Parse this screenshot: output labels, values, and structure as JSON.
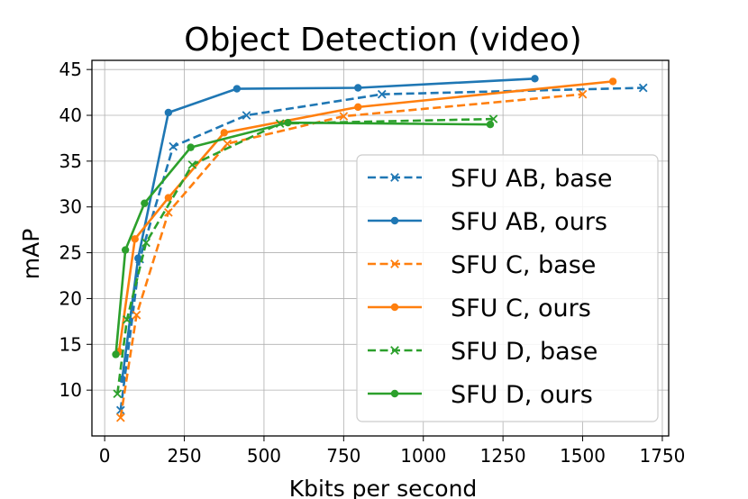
{
  "chart_data": {
    "type": "line",
    "title": "Object Detection (video)",
    "xlabel": "Kbits per second",
    "ylabel": "mAP",
    "xlim": [
      -40,
      1770
    ],
    "ylim": [
      5,
      46
    ],
    "x_ticks": [
      0,
      250,
      500,
      750,
      1000,
      1250,
      1500,
      1750
    ],
    "y_ticks": [
      10,
      15,
      20,
      25,
      30,
      35,
      40,
      45
    ],
    "grid": true,
    "legend_position": "lower-right",
    "series": [
      {
        "name": "SFU AB, base",
        "color": "#1f77b4",
        "linestyle": "dashed",
        "marker": "x",
        "x": [
          50,
          110,
          215,
          445,
          870,
          1690
        ],
        "y": [
          7.8,
          24.3,
          36.6,
          40.0,
          42.3,
          43.0
        ]
      },
      {
        "name": "SFU AB, ours",
        "color": "#1f77b4",
        "linestyle": "solid",
        "marker": "o",
        "x": [
          55,
          105,
          200,
          415,
          795,
          1350
        ],
        "y": [
          11.2,
          24.4,
          40.3,
          42.9,
          43.0,
          44.0
        ]
      },
      {
        "name": "SFU C, base",
        "color": "#ff7f0e",
        "linestyle": "dashed",
        "marker": "x",
        "x": [
          50,
          100,
          200,
          385,
          750,
          1500
        ],
        "y": [
          7.0,
          18.2,
          29.4,
          36.9,
          39.9,
          42.3
        ]
      },
      {
        "name": "SFU C, ours",
        "color": "#ff7f0e",
        "linestyle": "solid",
        "marker": "o",
        "x": [
          45,
          95,
          200,
          375,
          795,
          1595
        ],
        "y": [
          14.2,
          26.5,
          31.0,
          38.1,
          40.9,
          43.7
        ]
      },
      {
        "name": "SFU D, base",
        "color": "#2ca02c",
        "linestyle": "dashed",
        "marker": "x",
        "x": [
          40,
          70,
          130,
          275,
          550,
          1220
        ],
        "y": [
          9.6,
          17.7,
          26.1,
          34.6,
          39.1,
          39.6
        ]
      },
      {
        "name": "SFU D, ours",
        "color": "#2ca02c",
        "linestyle": "solid",
        "marker": "o",
        "x": [
          35,
          65,
          125,
          270,
          575,
          1210
        ],
        "y": [
          13.9,
          25.3,
          30.4,
          36.5,
          39.2,
          39.0
        ]
      }
    ]
  }
}
